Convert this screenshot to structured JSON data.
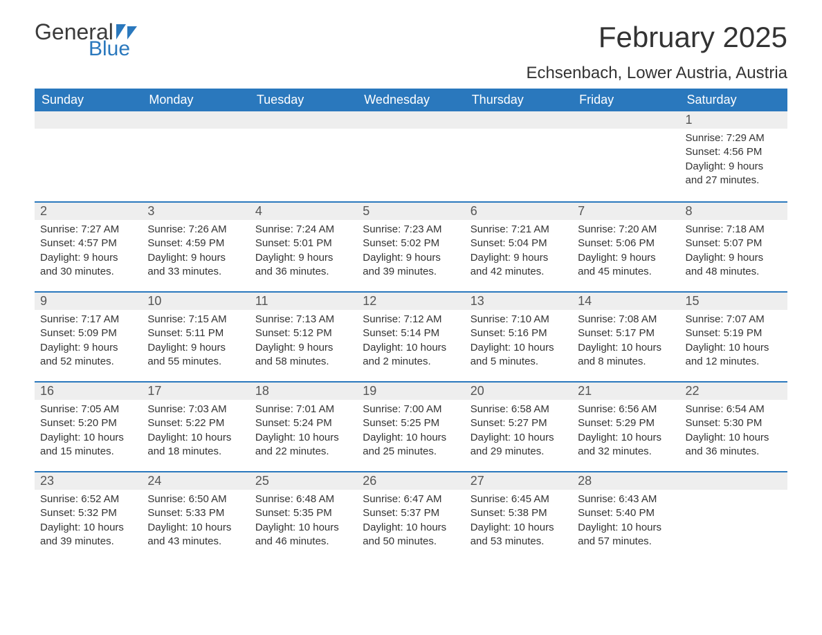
{
  "brand": {
    "general": "General",
    "blue": "Blue"
  },
  "title": "February 2025",
  "location": "Echsenbach, Lower Austria, Austria",
  "colors": {
    "header_bg": "#2a78bd",
    "header_text": "#ffffff",
    "daynum_bg": "#eeeeee",
    "row_border": "#2a78bd",
    "background": "#ffffff",
    "body_text": "#333333",
    "logo_blue": "#2a78bd",
    "logo_dark": "#3b3b3b"
  },
  "typography": {
    "title_fontsize": 42,
    "location_fontsize": 24,
    "weekday_fontsize": 18,
    "daynum_fontsize": 18,
    "content_fontsize": 15
  },
  "calendar": {
    "type": "table",
    "weekdays": [
      "Sunday",
      "Monday",
      "Tuesday",
      "Wednesday",
      "Thursday",
      "Friday",
      "Saturday"
    ],
    "leading_empty": 6,
    "days": [
      {
        "n": "1",
        "sunrise": "Sunrise: 7:29 AM",
        "sunset": "Sunset: 4:56 PM",
        "daylight1": "Daylight: 9 hours",
        "daylight2": "and 27 minutes."
      },
      {
        "n": "2",
        "sunrise": "Sunrise: 7:27 AM",
        "sunset": "Sunset: 4:57 PM",
        "daylight1": "Daylight: 9 hours",
        "daylight2": "and 30 minutes."
      },
      {
        "n": "3",
        "sunrise": "Sunrise: 7:26 AM",
        "sunset": "Sunset: 4:59 PM",
        "daylight1": "Daylight: 9 hours",
        "daylight2": "and 33 minutes."
      },
      {
        "n": "4",
        "sunrise": "Sunrise: 7:24 AM",
        "sunset": "Sunset: 5:01 PM",
        "daylight1": "Daylight: 9 hours",
        "daylight2": "and 36 minutes."
      },
      {
        "n": "5",
        "sunrise": "Sunrise: 7:23 AM",
        "sunset": "Sunset: 5:02 PM",
        "daylight1": "Daylight: 9 hours",
        "daylight2": "and 39 minutes."
      },
      {
        "n": "6",
        "sunrise": "Sunrise: 7:21 AM",
        "sunset": "Sunset: 5:04 PM",
        "daylight1": "Daylight: 9 hours",
        "daylight2": "and 42 minutes."
      },
      {
        "n": "7",
        "sunrise": "Sunrise: 7:20 AM",
        "sunset": "Sunset: 5:06 PM",
        "daylight1": "Daylight: 9 hours",
        "daylight2": "and 45 minutes."
      },
      {
        "n": "8",
        "sunrise": "Sunrise: 7:18 AM",
        "sunset": "Sunset: 5:07 PM",
        "daylight1": "Daylight: 9 hours",
        "daylight2": "and 48 minutes."
      },
      {
        "n": "9",
        "sunrise": "Sunrise: 7:17 AM",
        "sunset": "Sunset: 5:09 PM",
        "daylight1": "Daylight: 9 hours",
        "daylight2": "and 52 minutes."
      },
      {
        "n": "10",
        "sunrise": "Sunrise: 7:15 AM",
        "sunset": "Sunset: 5:11 PM",
        "daylight1": "Daylight: 9 hours",
        "daylight2": "and 55 minutes."
      },
      {
        "n": "11",
        "sunrise": "Sunrise: 7:13 AM",
        "sunset": "Sunset: 5:12 PM",
        "daylight1": "Daylight: 9 hours",
        "daylight2": "and 58 minutes."
      },
      {
        "n": "12",
        "sunrise": "Sunrise: 7:12 AM",
        "sunset": "Sunset: 5:14 PM",
        "daylight1": "Daylight: 10 hours",
        "daylight2": "and 2 minutes."
      },
      {
        "n": "13",
        "sunrise": "Sunrise: 7:10 AM",
        "sunset": "Sunset: 5:16 PM",
        "daylight1": "Daylight: 10 hours",
        "daylight2": "and 5 minutes."
      },
      {
        "n": "14",
        "sunrise": "Sunrise: 7:08 AM",
        "sunset": "Sunset: 5:17 PM",
        "daylight1": "Daylight: 10 hours",
        "daylight2": "and 8 minutes."
      },
      {
        "n": "15",
        "sunrise": "Sunrise: 7:07 AM",
        "sunset": "Sunset: 5:19 PM",
        "daylight1": "Daylight: 10 hours",
        "daylight2": "and 12 minutes."
      },
      {
        "n": "16",
        "sunrise": "Sunrise: 7:05 AM",
        "sunset": "Sunset: 5:20 PM",
        "daylight1": "Daylight: 10 hours",
        "daylight2": "and 15 minutes."
      },
      {
        "n": "17",
        "sunrise": "Sunrise: 7:03 AM",
        "sunset": "Sunset: 5:22 PM",
        "daylight1": "Daylight: 10 hours",
        "daylight2": "and 18 minutes."
      },
      {
        "n": "18",
        "sunrise": "Sunrise: 7:01 AM",
        "sunset": "Sunset: 5:24 PM",
        "daylight1": "Daylight: 10 hours",
        "daylight2": "and 22 minutes."
      },
      {
        "n": "19",
        "sunrise": "Sunrise: 7:00 AM",
        "sunset": "Sunset: 5:25 PM",
        "daylight1": "Daylight: 10 hours",
        "daylight2": "and 25 minutes."
      },
      {
        "n": "20",
        "sunrise": "Sunrise: 6:58 AM",
        "sunset": "Sunset: 5:27 PM",
        "daylight1": "Daylight: 10 hours",
        "daylight2": "and 29 minutes."
      },
      {
        "n": "21",
        "sunrise": "Sunrise: 6:56 AM",
        "sunset": "Sunset: 5:29 PM",
        "daylight1": "Daylight: 10 hours",
        "daylight2": "and 32 minutes."
      },
      {
        "n": "22",
        "sunrise": "Sunrise: 6:54 AM",
        "sunset": "Sunset: 5:30 PM",
        "daylight1": "Daylight: 10 hours",
        "daylight2": "and 36 minutes."
      },
      {
        "n": "23",
        "sunrise": "Sunrise: 6:52 AM",
        "sunset": "Sunset: 5:32 PM",
        "daylight1": "Daylight: 10 hours",
        "daylight2": "and 39 minutes."
      },
      {
        "n": "24",
        "sunrise": "Sunrise: 6:50 AM",
        "sunset": "Sunset: 5:33 PM",
        "daylight1": "Daylight: 10 hours",
        "daylight2": "and 43 minutes."
      },
      {
        "n": "25",
        "sunrise": "Sunrise: 6:48 AM",
        "sunset": "Sunset: 5:35 PM",
        "daylight1": "Daylight: 10 hours",
        "daylight2": "and 46 minutes."
      },
      {
        "n": "26",
        "sunrise": "Sunrise: 6:47 AM",
        "sunset": "Sunset: 5:37 PM",
        "daylight1": "Daylight: 10 hours",
        "daylight2": "and 50 minutes."
      },
      {
        "n": "27",
        "sunrise": "Sunrise: 6:45 AM",
        "sunset": "Sunset: 5:38 PM",
        "daylight1": "Daylight: 10 hours",
        "daylight2": "and 53 minutes."
      },
      {
        "n": "28",
        "sunrise": "Sunrise: 6:43 AM",
        "sunset": "Sunset: 5:40 PM",
        "daylight1": "Daylight: 10 hours",
        "daylight2": "and 57 minutes."
      }
    ]
  }
}
